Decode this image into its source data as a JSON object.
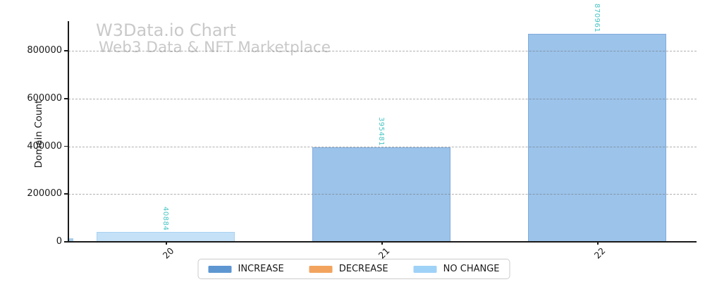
{
  "watermark": {
    "title": "W3Data.io Chart",
    "subtitle": "Web3 Data & NFT Marketplace"
  },
  "chart_data": {
    "type": "bar",
    "title": "W3Data.io Chart",
    "subtitle": "Web3 Data & NFT Marketplace",
    "xlabel": "",
    "ylabel": "Domain Count",
    "categories": [
      "20",
      "21",
      "22"
    ],
    "values": [
      40884,
      395481,
      870961
    ],
    "bar_change_types": [
      "NO CHANGE",
      "INCREASE",
      "INCREASE"
    ],
    "bar_fill_colors": [
      "#c5e1f8",
      "#9cc3ea",
      "#9cc3ea"
    ],
    "bar_edge_colors": [
      "#a9d2f0",
      "#7fabdd",
      "#7fabdd"
    ],
    "value_labels": [
      "40884",
      "395481",
      "870961"
    ],
    "value_label_color": "#48c4c4",
    "value_label_rotation_deg": 90,
    "ylim": [
      0,
      925000
    ],
    "yticks": [
      0,
      200000,
      400000,
      600000,
      800000
    ],
    "ytick_labels": [
      "0",
      "200000",
      "400000",
      "600000",
      "800000"
    ],
    "grid": {
      "axis": "y",
      "style": "dashed",
      "color": "#9e9e9e"
    },
    "legend": {
      "position": "bottom-center",
      "entries": [
        {
          "label": "INCREASE",
          "color": "#5e96d2"
        },
        {
          "label": "DECREASE",
          "color": "#f2a45f"
        },
        {
          "label": "NO CHANGE",
          "color": "#9fd2f7"
        }
      ]
    },
    "origin_stub_color": "#a9cdec"
  }
}
